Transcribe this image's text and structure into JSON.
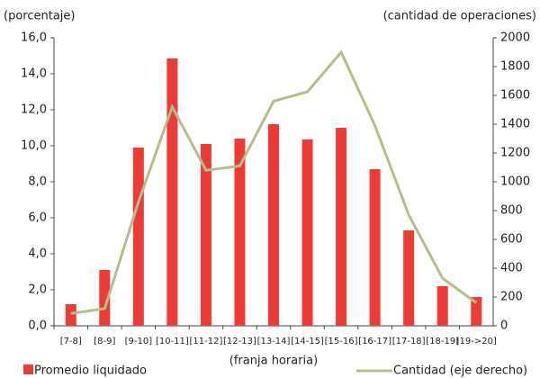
{
  "chart_data": {
    "type": "bar",
    "y_label": "(porcentaje)",
    "y2_label": "(cantidad de operaciones)",
    "x_label": "(franja horaria)",
    "categories": [
      "[7-8]",
      "[8-9]",
      "[9-10]",
      "[10-11]",
      "[11-12]",
      "[12-13]",
      "[13-14]",
      "[14-15]",
      "[15-16]",
      "[16-17]",
      "[17-18]",
      "[18-19]",
      "[19->20]"
    ],
    "series": [
      {
        "name": "Promedio liquidado",
        "type": "bar",
        "color": "#ee3b35",
        "values": [
          1.2,
          3.1,
          9.9,
          14.85,
          10.1,
          10.4,
          11.2,
          10.35,
          11.0,
          8.7,
          5.3,
          2.2,
          1.6
        ]
      },
      {
        "name": "Cantidad (eje derecho)",
        "type": "line",
        "axis": "y2",
        "color": "#b5bd8a",
        "values": [
          85,
          120,
          860,
          1520,
          1080,
          1110,
          1560,
          1625,
          1900,
          1390,
          770,
          330,
          160
        ]
      }
    ],
    "ylim": [
      0,
      16
    ],
    "yticks": [
      {
        "value": 0,
        "label": "0,0"
      },
      {
        "value": 2,
        "label": "2,0"
      },
      {
        "value": 4,
        "label": "4,0"
      },
      {
        "value": 6,
        "label": "6,0"
      },
      {
        "value": 8,
        "label": "8,0"
      },
      {
        "value": 10,
        "label": "10,0"
      },
      {
        "value": 12,
        "label": "12,0"
      },
      {
        "value": 14,
        "label": "14,0"
      },
      {
        "value": 16,
        "label": "16,0"
      }
    ],
    "y2lim": [
      0,
      2000
    ],
    "y2ticks": [
      0,
      200,
      400,
      600,
      800,
      1000,
      1200,
      1400,
      1600,
      1800,
      2000
    ],
    "grid": false
  }
}
